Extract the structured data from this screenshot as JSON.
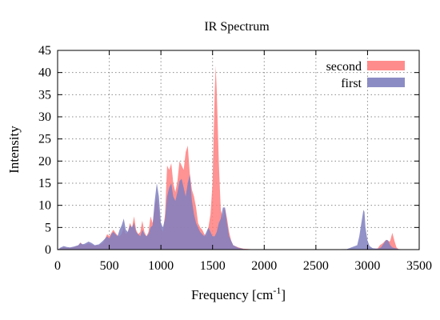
{
  "chart_data": {
    "type": "area",
    "title": "IR Spectrum",
    "xlabel": "Frequency [cm",
    "xlabel_superscript": "-1",
    "xlabel_suffix": "]",
    "ylabel": "Intensity",
    "xlim": [
      0,
      3500
    ],
    "ylim": [
      0,
      45
    ],
    "xticks": [
      0,
      500,
      1000,
      1500,
      2000,
      2500,
      3000,
      3500
    ],
    "yticks": [
      0,
      5,
      10,
      15,
      20,
      25,
      30,
      35,
      40,
      45
    ],
    "grid": true,
    "legend": "top-right",
    "series": [
      {
        "name": "second",
        "color": "#ff7f7f",
        "x": [
          0,
          30,
          60,
          90,
          120,
          160,
          200,
          220,
          240,
          260,
          300,
          330,
          360,
          400,
          440,
          480,
          500,
          520,
          540,
          560,
          580,
          600,
          620,
          640,
          660,
          680,
          700,
          720,
          740,
          760,
          780,
          800,
          820,
          840,
          860,
          880,
          900,
          920,
          940,
          960,
          980,
          1000,
          1020,
          1040,
          1060,
          1080,
          1100,
          1120,
          1140,
          1160,
          1180,
          1200,
          1220,
          1240,
          1260,
          1280,
          1300,
          1320,
          1340,
          1360,
          1380,
          1400,
          1420,
          1440,
          1460,
          1480,
          1500,
          1510,
          1520,
          1530,
          1540,
          1550,
          1560,
          1570,
          1580,
          1600,
          1620,
          1640,
          1660,
          1680,
          1700,
          1750,
          1800,
          1900,
          2000,
          2200,
          2500,
          2800,
          2900,
          2950,
          2980,
          3000,
          3050,
          3100,
          3120,
          3150,
          3170,
          3190,
          3200,
          3210,
          3220,
          3240,
          3260,
          3280,
          3300,
          3400,
          3500
        ],
        "y": [
          0,
          0.3,
          0.5,
          0.4,
          0.4,
          0.6,
          0.9,
          1.6,
          1.2,
          1.0,
          1.4,
          1.1,
          0.9,
          1.0,
          1.5,
          3.5,
          3.0,
          3.8,
          4.5,
          3.8,
          3.2,
          3.0,
          3.6,
          5.0,
          3.5,
          4.0,
          6.0,
          5.0,
          7.5,
          4.5,
          3.5,
          4.0,
          6.5,
          4.0,
          3.0,
          4.0,
          7.5,
          6.0,
          9.5,
          12.0,
          9.0,
          5.0,
          4.0,
          8.0,
          19.0,
          18.0,
          19.5,
          15.0,
          13.0,
          15.5,
          20.0,
          19.0,
          18.0,
          22.0,
          23.5,
          17.0,
          13.5,
          12.0,
          9.5,
          6.0,
          5.0,
          4.5,
          3.5,
          3.0,
          5.0,
          8.0,
          15.0,
          25.0,
          35.0,
          41.5,
          36.0,
          28.0,
          20.0,
          14.0,
          9.0,
          7.0,
          9.5,
          7.0,
          4.0,
          2.0,
          1.0,
          0.5,
          0.2,
          0.05,
          0,
          0,
          0,
          0,
          0,
          0,
          0,
          0,
          0,
          0.3,
          1.0,
          1.5,
          2.0,
          2.2,
          2.0,
          1.8,
          2.0,
          3.8,
          2.0,
          0.5,
          0.1,
          0,
          0
        ]
      },
      {
        "name": "first",
        "color": "#7f7fbf",
        "x": [
          0,
          30,
          60,
          90,
          120,
          160,
          200,
          220,
          240,
          260,
          300,
          330,
          360,
          400,
          440,
          480,
          500,
          520,
          540,
          560,
          580,
          600,
          620,
          640,
          660,
          680,
          700,
          720,
          740,
          760,
          780,
          800,
          820,
          840,
          860,
          880,
          900,
          920,
          940,
          960,
          980,
          1000,
          1020,
          1040,
          1060,
          1080,
          1100,
          1120,
          1140,
          1160,
          1180,
          1200,
          1220,
          1240,
          1260,
          1280,
          1300,
          1320,
          1340,
          1360,
          1380,
          1400,
          1420,
          1440,
          1460,
          1480,
          1500,
          1520,
          1540,
          1560,
          1580,
          1600,
          1620,
          1640,
          1660,
          1700,
          1750,
          1800,
          1900,
          2000,
          2200,
          2500,
          2800,
          2900,
          2920,
          2940,
          2960,
          2970,
          2980,
          3000,
          3020,
          3050,
          3100,
          3130,
          3160,
          3180,
          3200,
          3220,
          3240,
          3300,
          3400,
          3500
        ],
        "y": [
          0,
          0.5,
          0.8,
          0.6,
          0.5,
          0.7,
          1.0,
          1.5,
          1.2,
          1.3,
          1.8,
          1.5,
          1.0,
          1.2,
          2.0,
          3.0,
          2.5,
          3.5,
          4.0,
          3.5,
          3.0,
          4.5,
          5.5,
          7.0,
          4.5,
          4.0,
          5.5,
          5.0,
          6.0,
          4.0,
          3.5,
          3.0,
          4.5,
          3.5,
          3.0,
          3.5,
          5.0,
          5.5,
          11.0,
          15.0,
          12.0,
          6.0,
          5.0,
          7.0,
          12.0,
          14.0,
          15.0,
          12.0,
          11.0,
          13.0,
          15.5,
          16.0,
          14.0,
          12.0,
          15.0,
          17.0,
          11.0,
          8.0,
          6.0,
          5.0,
          4.0,
          3.5,
          3.0,
          4.0,
          5.0,
          4.0,
          3.0,
          3.0,
          4.0,
          6.0,
          7.0,
          9.5,
          9.5,
          6.0,
          3.0,
          1.0,
          0.4,
          0.15,
          0.05,
          0,
          0,
          0,
          0.1,
          1.0,
          3.0,
          6.0,
          9.0,
          8.5,
          5.0,
          2.0,
          0.8,
          0.3,
          0.2,
          0.5,
          1.5,
          2.2,
          2.0,
          1.0,
          0.5,
          0.1,
          0,
          0
        ]
      }
    ]
  }
}
